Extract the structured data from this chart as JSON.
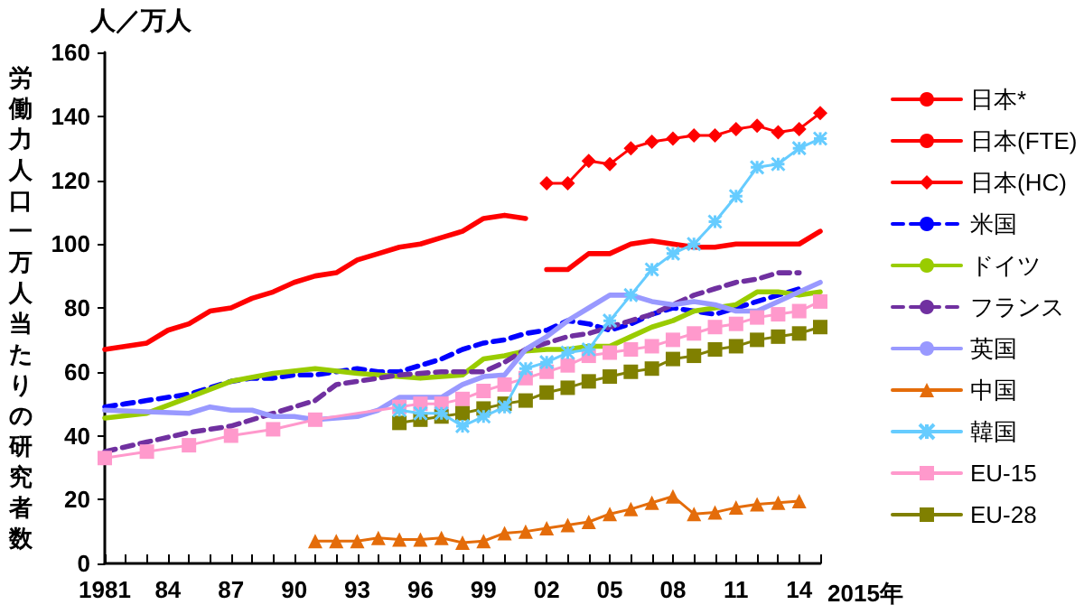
{
  "chart_data": {
    "type": "line",
    "ylabel": "労働力人口一万人当たりの研究者数",
    "xlabel": "2015年",
    "annotations": [
      "人／万人"
    ],
    "xlim": [
      1981,
      2015
    ],
    "xticks": [
      {
        "value": 1981,
        "label": "1981"
      },
      {
        "value": 1982,
        "label": null
      },
      {
        "value": 1983,
        "label": null
      },
      {
        "value": 1984,
        "label": "84"
      },
      {
        "value": 1985,
        "label": null
      },
      {
        "value": 1986,
        "label": null
      },
      {
        "value": 1987,
        "label": "87"
      },
      {
        "value": 1988,
        "label": null
      },
      {
        "value": 1989,
        "label": null
      },
      {
        "value": 1990,
        "label": "90"
      },
      {
        "value": 1991,
        "label": null
      },
      {
        "value": 1992,
        "label": null
      },
      {
        "value": 1993,
        "label": "93"
      },
      {
        "value": 1994,
        "label": null
      },
      {
        "value": 1995,
        "label": null
      },
      {
        "value": 1996,
        "label": "96"
      },
      {
        "value": 1997,
        "label": null
      },
      {
        "value": 1998,
        "label": null
      },
      {
        "value": 1999,
        "label": "99"
      },
      {
        "value": 2000,
        "label": null
      },
      {
        "value": 2001,
        "label": null
      },
      {
        "value": 2002,
        "label": "02"
      },
      {
        "value": 2003,
        "label": null
      },
      {
        "value": 2004,
        "label": null
      },
      {
        "value": 2005,
        "label": "05"
      },
      {
        "value": 2006,
        "label": null
      },
      {
        "value": 2007,
        "label": null
      },
      {
        "value": 2008,
        "label": "08"
      },
      {
        "value": 2009,
        "label": null
      },
      {
        "value": 2010,
        "label": null
      },
      {
        "value": 2011,
        "label": "11"
      },
      {
        "value": 2012,
        "label": null
      },
      {
        "value": 2013,
        "label": null
      },
      {
        "value": 2014,
        "label": "14"
      },
      {
        "value": 2015,
        "label": null
      }
    ],
    "ylim": [
      0,
      160
    ],
    "yticks": [
      0,
      20,
      40,
      60,
      80,
      100,
      120,
      140,
      160
    ],
    "grid": false,
    "legend": "right",
    "series": [
      {
        "name": "日本*",
        "color": "#ff0000",
        "marker": "none",
        "line_style": "solid",
        "x": [
          1981,
          1982,
          1983,
          1984,
          1985,
          1986,
          1987,
          1988,
          1989,
          1990,
          1991,
          1992,
          1993,
          1994,
          1995,
          1996,
          1997,
          1998,
          1999,
          2000,
          2001
        ],
        "values": [
          67,
          68,
          69,
          73,
          75,
          79,
          80,
          83,
          85,
          88,
          90,
          91,
          95,
          97,
          99,
          100,
          102,
          104,
          108,
          109,
          108
        ]
      },
      {
        "name": "日本(FTE)",
        "color": "#ff0000",
        "marker": "none",
        "line_style": "solid",
        "x": [
          2002,
          2003,
          2004,
          2005,
          2006,
          2007,
          2008,
          2009,
          2010,
          2011,
          2012,
          2013,
          2014,
          2015
        ],
        "values": [
          92,
          92,
          97,
          97,
          100,
          101,
          100,
          99,
          99,
          100,
          100,
          100,
          100,
          104
        ]
      },
      {
        "name": "日本(HC)",
        "color": "#ff0000",
        "marker": "diamond",
        "line_style": "solid",
        "x": [
          2002,
          2003,
          2004,
          2005,
          2006,
          2007,
          2008,
          2009,
          2010,
          2011,
          2012,
          2013,
          2014,
          2015
        ],
        "values": [
          119,
          119,
          126,
          125,
          130,
          132,
          133,
          134,
          134,
          136,
          137,
          135,
          136,
          141
        ]
      },
      {
        "name": "米国",
        "color": "#0000ff",
        "marker": "none",
        "line_style": "dashed",
        "x": [
          1981,
          1982,
          1983,
          1984,
          1985,
          1986,
          1987,
          1988,
          1989,
          1990,
          1991,
          1992,
          1993,
          1994,
          1995,
          1996,
          1997,
          1998,
          1999,
          2000,
          2001,
          2002,
          2003,
          2004,
          2005,
          2006,
          2007,
          2008,
          2009,
          2010,
          2011,
          2012,
          2013,
          2014
        ],
        "values": [
          49,
          50,
          51,
          52,
          53,
          55,
          57,
          58,
          58,
          59,
          59,
          60,
          61,
          60,
          60,
          62,
          64,
          67,
          69,
          70,
          72,
          73,
          76,
          75,
          73,
          75,
          78,
          80,
          79,
          78,
          80,
          82,
          84,
          86
        ]
      },
      {
        "name": "ドイツ",
        "color": "#99cc00",
        "marker": "none",
        "line_style": "solid",
        "x": [
          1981,
          1983,
          1985,
          1987,
          1989,
          1991,
          1993,
          1995,
          1996,
          1997,
          1998,
          1999,
          2000,
          2001,
          2002,
          2003,
          2004,
          2005,
          2006,
          2007,
          2008,
          2009,
          2010,
          2011,
          2012,
          2013,
          2014,
          2015
        ],
        "values": [
          45.5,
          47,
          52,
          57,
          59.5,
          61,
          59.5,
          58.5,
          58,
          58.5,
          59,
          64,
          65,
          66.5,
          67,
          67,
          68,
          68,
          71,
          74,
          76,
          79,
          80,
          81,
          85,
          85,
          84,
          85
        ]
      },
      {
        "name": "フランス",
        "color": "#7030a0",
        "marker": "none",
        "line_style": "dashed",
        "x": [
          1981,
          1983,
          1985,
          1987,
          1989,
          1991,
          1992,
          1993,
          1995,
          1997,
          1999,
          2000,
          2001,
          2002,
          2003,
          2004,
          2005,
          2006,
          2007,
          2008,
          2009,
          2010,
          2011,
          2012,
          2013,
          2014
        ],
        "values": [
          35,
          38,
          41,
          43,
          47,
          51,
          56,
          57,
          59,
          60,
          60,
          63,
          67,
          69,
          71,
          72,
          74,
          76,
          78,
          81,
          84,
          86,
          88,
          89,
          91,
          91
        ]
      },
      {
        "name": "英国",
        "color": "#9999ff",
        "marker": "none",
        "line_style": "solid",
        "x": [
          1981,
          1983,
          1985,
          1986,
          1987,
          1988,
          1989,
          1990,
          1991,
          1993,
          1994,
          1995,
          1996,
          1997,
          1998,
          1999,
          2000,
          2001,
          2002,
          2003,
          2004,
          2005,
          2006,
          2007,
          2008,
          2009,
          2010,
          2011,
          2012,
          2013,
          2014,
          2015
        ],
        "values": [
          48,
          47.5,
          47,
          49,
          48,
          48,
          46,
          46,
          45,
          46,
          48,
          52,
          52,
          52,
          56,
          58.5,
          59,
          67,
          71,
          76,
          80,
          84,
          84,
          82,
          81,
          82,
          81,
          79,
          79,
          82,
          85,
          88
        ]
      },
      {
        "name": "中国",
        "color": "#e46c0a",
        "marker": "triangle",
        "line_style": "solid",
        "x": [
          1991,
          1992,
          1993,
          1994,
          1995,
          1996,
          1997,
          1998,
          1999,
          2000,
          2001,
          2002,
          2003,
          2004,
          2005,
          2006,
          2007,
          2008,
          2009,
          2010,
          2011,
          2012,
          2013,
          2014
        ],
        "values": [
          7,
          7,
          7,
          8,
          7.5,
          7.5,
          8,
          6.5,
          7,
          9.5,
          10,
          11,
          12,
          13,
          15.5,
          17,
          19,
          21,
          15.5,
          16,
          17.5,
          18.5,
          19,
          19.5
        ]
      },
      {
        "name": "韓国",
        "color": "#66ccff",
        "marker": "cross",
        "line_style": "solid",
        "x": [
          1995,
          1996,
          1997,
          1998,
          1999,
          2000,
          2001,
          2002,
          2003,
          2004,
          2005,
          2006,
          2007,
          2008,
          2009,
          2010,
          2011,
          2012,
          2013,
          2014,
          2015
        ],
        "values": [
          48,
          47,
          47,
          43,
          46,
          49,
          61,
          63,
          66,
          67,
          76,
          84,
          92,
          97,
          100,
          107,
          115,
          124,
          125,
          130,
          133
        ]
      },
      {
        "name": "EU-15",
        "color": "#ff99cc",
        "marker": "square",
        "line_style": "solid",
        "x": [
          1981,
          1983,
          1985,
          1987,
          1989,
          1991,
          1995,
          1996,
          1997,
          1998,
          1999,
          2000,
          2001,
          2002,
          2003,
          2004,
          2005,
          2006,
          2007,
          2008,
          2009,
          2010,
          2011,
          2012,
          2013,
          2014,
          2015
        ],
        "values": [
          33,
          35,
          37,
          40,
          42,
          45,
          49,
          50,
          50,
          51.5,
          54,
          56,
          58,
          60,
          62,
          65,
          66,
          67,
          68,
          70,
          72,
          74,
          75,
          77,
          78,
          79,
          82
        ]
      },
      {
        "name": "EU-28",
        "color": "#808000",
        "marker": "square",
        "line_style": "solid",
        "x": [
          1995,
          1996,
          1997,
          1998,
          1999,
          2000,
          2001,
          2002,
          2003,
          2004,
          2005,
          2006,
          2007,
          2008,
          2009,
          2010,
          2011,
          2012,
          2013,
          2014,
          2015
        ],
        "values": [
          44,
          45,
          46,
          47,
          48.5,
          50,
          51,
          53.5,
          55,
          57,
          58.5,
          60,
          61,
          64,
          65,
          67,
          68,
          70,
          71,
          72,
          74
        ]
      }
    ]
  }
}
